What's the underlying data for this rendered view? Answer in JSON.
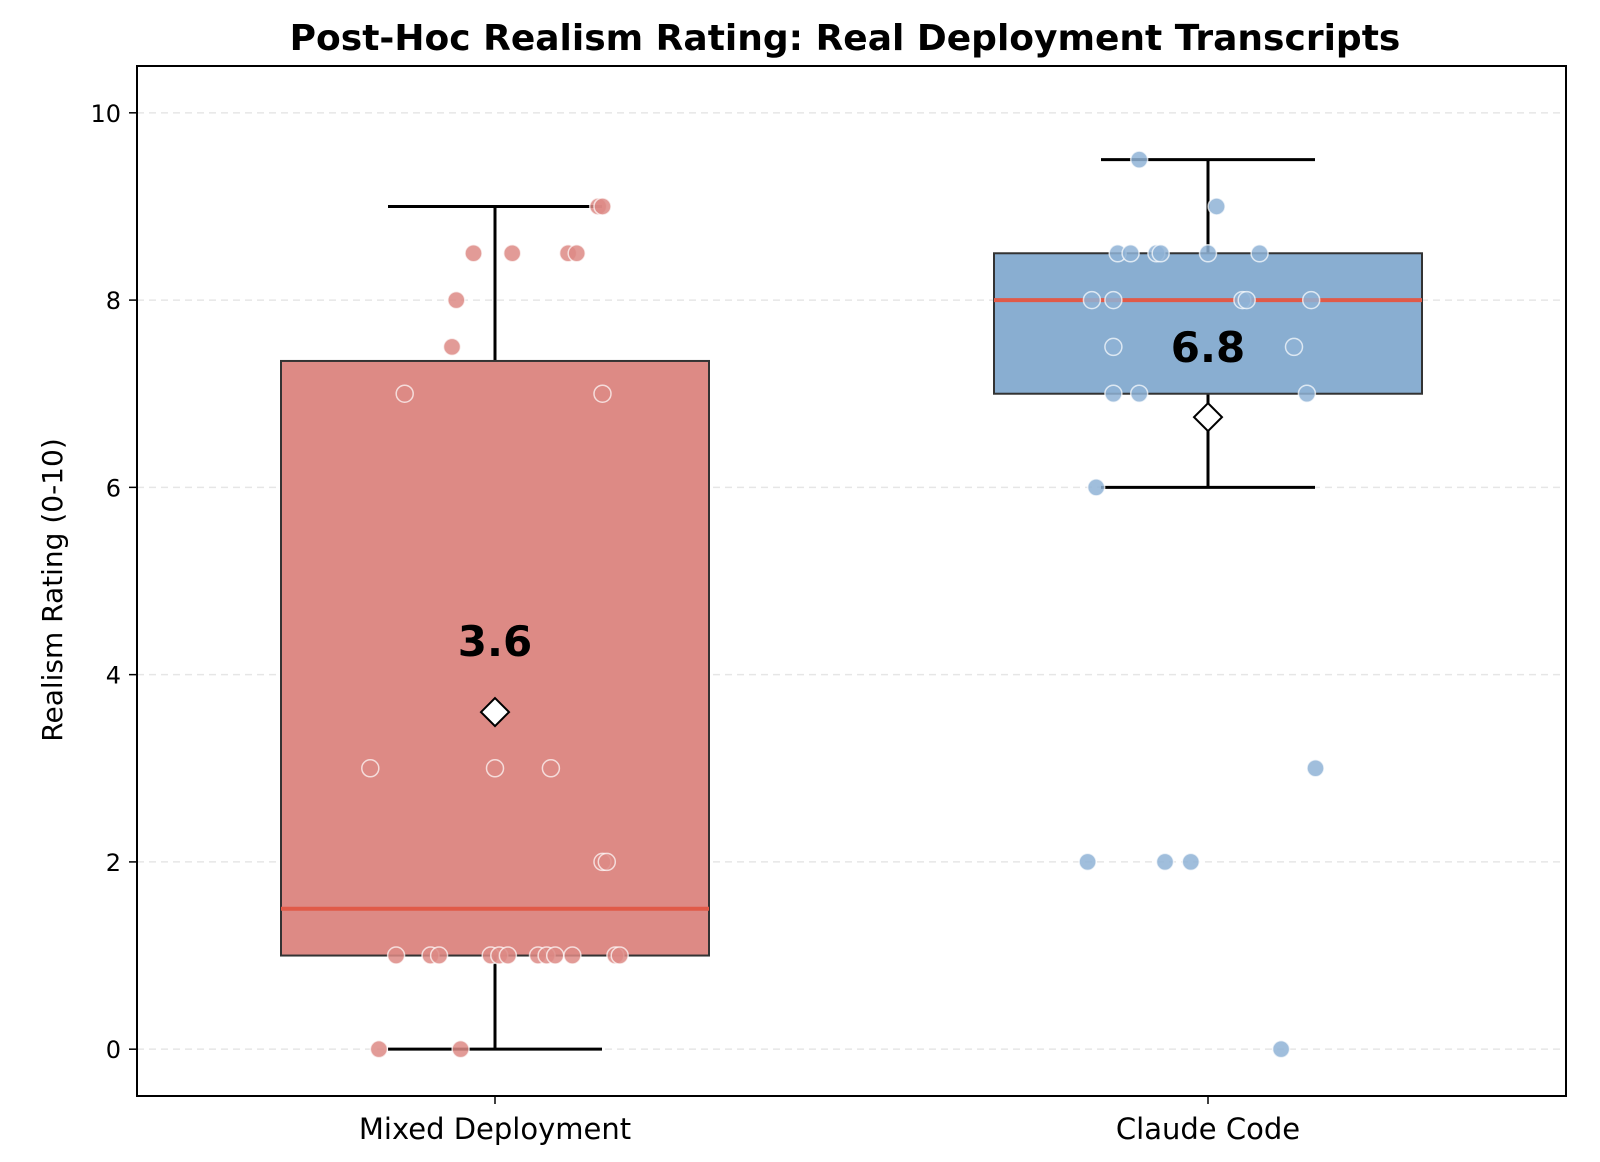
{
  "chart_data": {
    "type": "box",
    "title": "Post-Hoc Realism Rating: Real Deployment Transcripts",
    "xlabel": "",
    "ylabel": "Realism Rating (0-10)",
    "ylim": [
      -0.5,
      10.5
    ],
    "yticks": [
      0,
      2,
      4,
      6,
      8,
      10
    ],
    "grid": "horizontal dashed",
    "categories": [
      "Mixed Deployment",
      "Claude Code"
    ],
    "series": [
      {
        "name": "Mixed Deployment",
        "color": "#dd8a85",
        "point_color": "#dd8a85",
        "q1": 1.0,
        "median": 1.5,
        "q3": 7.35,
        "whisker_low": 0,
        "whisker_high": 9,
        "mean": 3.6,
        "mean_label": "3.6",
        "points": [
          {
            "y": 0,
            "j": -0.27
          },
          {
            "y": 0,
            "j": -0.08
          },
          {
            "y": 1,
            "j": -0.23
          },
          {
            "y": 1,
            "j": -0.15
          },
          {
            "y": 1,
            "j": -0.13
          },
          {
            "y": 1,
            "j": -0.01
          },
          {
            "y": 1,
            "j": 0.01
          },
          {
            "y": 1,
            "j": 0.03
          },
          {
            "y": 1,
            "j": 0.1
          },
          {
            "y": 1,
            "j": 0.12
          },
          {
            "y": 1,
            "j": 0.14
          },
          {
            "y": 1,
            "j": 0.18
          },
          {
            "y": 1,
            "j": 0.28
          },
          {
            "y": 1,
            "j": 0.29
          },
          {
            "y": 2,
            "j": 0.25
          },
          {
            "y": 2,
            "j": 0.26
          },
          {
            "y": 3,
            "j": -0.29
          },
          {
            "y": 3,
            "j": 0.0
          },
          {
            "y": 3,
            "j": 0.13
          },
          {
            "y": 7,
            "j": -0.21
          },
          {
            "y": 7,
            "j": 0.25
          },
          {
            "y": 7.5,
            "j": -0.1
          },
          {
            "y": 8,
            "j": -0.09
          },
          {
            "y": 8.5,
            "j": -0.05
          },
          {
            "y": 8.5,
            "j": 0.04
          },
          {
            "y": 8.5,
            "j": 0.17
          },
          {
            "y": 8.5,
            "j": 0.19
          },
          {
            "y": 9,
            "j": 0.24
          },
          {
            "y": 9,
            "j": 0.25
          }
        ]
      },
      {
        "name": "Claude Code",
        "color": "#89aed1",
        "point_color": "#8fb3d6",
        "q1": 7.0,
        "median": 8.0,
        "q3": 8.5,
        "whisker_low": 6,
        "whisker_high": 9.5,
        "mean": 6.75,
        "mean_label": "6.8",
        "points": [
          {
            "y": 0,
            "j": 0.17
          },
          {
            "y": 2,
            "j": -0.28
          },
          {
            "y": 2,
            "j": -0.1
          },
          {
            "y": 2,
            "j": -0.04
          },
          {
            "y": 3,
            "j": 0.25
          },
          {
            "y": 6,
            "j": -0.26
          },
          {
            "y": 7,
            "j": -0.22
          },
          {
            "y": 7,
            "j": -0.16
          },
          {
            "y": 7,
            "j": 0.23
          },
          {
            "y": 7.5,
            "j": -0.22
          },
          {
            "y": 7.5,
            "j": 0.2
          },
          {
            "y": 8,
            "j": -0.27
          },
          {
            "y": 8,
            "j": -0.22
          },
          {
            "y": 8,
            "j": 0.08
          },
          {
            "y": 8,
            "j": 0.09
          },
          {
            "y": 8,
            "j": 0.24
          },
          {
            "y": 8.5,
            "j": -0.21
          },
          {
            "y": 8.5,
            "j": -0.18
          },
          {
            "y": 8.5,
            "j": -0.12
          },
          {
            "y": 8.5,
            "j": -0.11
          },
          {
            "y": 8.5,
            "j": 0.0
          },
          {
            "y": 8.5,
            "j": 0.12
          },
          {
            "y": 9,
            "j": 0.02
          },
          {
            "y": 9.5,
            "j": -0.16
          }
        ]
      }
    ],
    "colors": {
      "median_line": "#e05a48",
      "whisker": "#000000",
      "box_edge": "#333333",
      "grid": "#e6e6e6",
      "mean_marker": "#ffffff"
    }
  }
}
